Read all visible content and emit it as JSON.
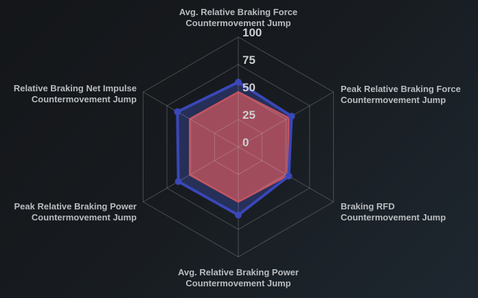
{
  "chart_data": {
    "type": "radar",
    "max": 100,
    "grid": true,
    "legend": false,
    "axes": [
      {
        "label": [
          "Avg. Relative Braking Force",
          "Countermovement Jump"
        ]
      },
      {
        "label": [
          "Peak Relative Braking Force",
          "Countermovement Jump"
        ]
      },
      {
        "label": [
          "Braking RFD",
          "Countermovement Jump"
        ]
      },
      {
        "label": [
          "Avg. Relative Braking Power",
          "Countermovement Jump"
        ]
      },
      {
        "label": [
          "Peak Relative Braking Power",
          "Countermovement Jump"
        ]
      },
      {
        "label": [
          "Relative Braking Net Impulse",
          "Countermovement Jump"
        ]
      }
    ],
    "ticks": [
      "100",
      "75",
      "50",
      "25",
      "0"
    ],
    "tick_values": [
      100,
      75,
      50,
      25,
      0
    ],
    "series": [
      {
        "name": "blue",
        "color": "#3a47b8",
        "fill": "rgba(63,81,181,0.38)",
        "stroke_width": 4,
        "point_dots": true,
        "values": [
          59,
          56,
          53,
          62,
          63,
          64
        ]
      },
      {
        "name": "red",
        "color": "#c4545f",
        "fill": "rgba(196,84,94,0.78)",
        "stroke_width": 2.5,
        "point_dots": false,
        "values": [
          50,
          53,
          52,
          50,
          51,
          51
        ]
      }
    ],
    "grid_color": "#cdd2d6"
  },
  "colors": {
    "background_from": "#141619",
    "background_to": "#1e2730",
    "axis_label_text": "#b9bdc0",
    "tick_label_text": "#ccced0"
  }
}
